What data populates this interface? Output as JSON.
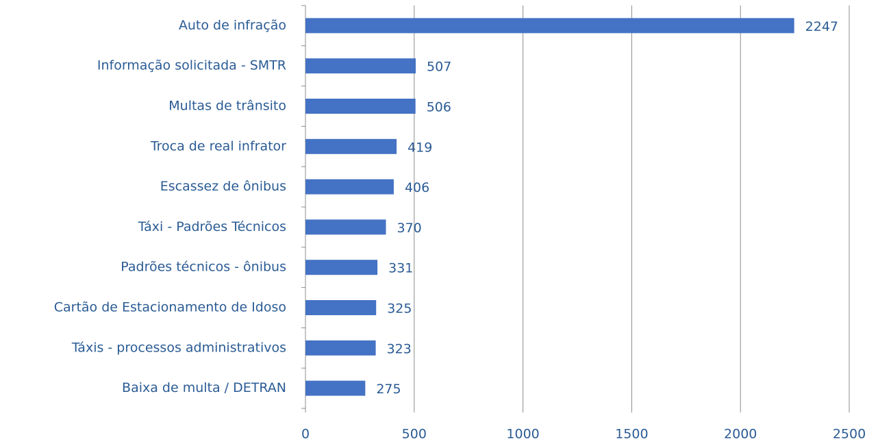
{
  "chart_data": {
    "type": "barh",
    "categories": [
      "Auto de infração",
      "Informação solicitada - SMTR",
      "Multas de trânsito",
      "Troca de real infrator",
      "Escassez de ônibus",
      "Táxi - Padrões Técnicos",
      "Padrões técnicos - ônibus",
      "Cartão de Estacionamento de Idoso",
      "Táxis - processos administrativos",
      "Baixa de multa / DETRAN"
    ],
    "values": [
      2247,
      507,
      506,
      419,
      406,
      370,
      331,
      325,
      323,
      275
    ],
    "color": "#4472c4",
    "xlim": [
      0,
      2500
    ],
    "xticks": [
      0,
      500,
      1000,
      1500,
      2000,
      2500
    ],
    "grid": true
  }
}
